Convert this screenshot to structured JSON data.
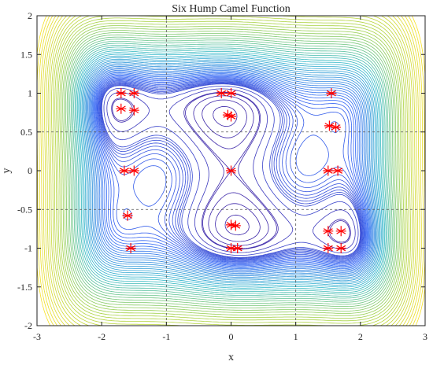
{
  "chart_data": {
    "type": "contour",
    "title": "Six Hump Camel Function",
    "xlabel": "x",
    "ylabel": "y",
    "xlim": [
      -3,
      3
    ],
    "ylim": [
      -2,
      2
    ],
    "xticks": [
      -3,
      -2,
      -1,
      0,
      1,
      2,
      3
    ],
    "yticks": [
      -2,
      -1.5,
      -1,
      -0.5,
      0,
      0.5,
      1,
      1.5,
      2
    ],
    "xtick_labels": [
      "-3",
      "-2",
      "-1",
      "0",
      "1",
      "2",
      "3"
    ],
    "ytick_labels": [
      "-2",
      "-1.5",
      "-1",
      "-0.5",
      "0",
      "0.5",
      "1",
      "1.5",
      "2"
    ],
    "grid_x": [
      -1,
      1
    ],
    "grid_y": [
      -0.5,
      0.5
    ],
    "colormap": [
      "#3d26a8",
      "#2f63f5",
      "#2eb7c8",
      "#a5d242",
      "#f9e021"
    ],
    "marker_color": "#ff0000",
    "marker_symbol": "asterisk",
    "points": [
      {
        "x": -1.7,
        "y": 1.0
      },
      {
        "x": -1.5,
        "y": 1.0
      },
      {
        "x": -1.7,
        "y": 0.8
      },
      {
        "x": -1.5,
        "y": 0.78
      },
      {
        "x": -1.65,
        "y": 0.0
      },
      {
        "x": -1.5,
        "y": 0.0
      },
      {
        "x": -1.6,
        "y": -0.58
      },
      {
        "x": -1.55,
        "y": -1.0
      },
      {
        "x": -0.15,
        "y": 1.0
      },
      {
        "x": 0.0,
        "y": 1.0
      },
      {
        "x": -0.05,
        "y": 0.72
      },
      {
        "x": 0.0,
        "y": 0.7
      },
      {
        "x": 0.0,
        "y": 0.0
      },
      {
        "x": 0.0,
        "y": -0.7
      },
      {
        "x": 0.07,
        "y": -0.71
      },
      {
        "x": 0.0,
        "y": -1.0
      },
      {
        "x": 0.1,
        "y": -1.0
      },
      {
        "x": 1.55,
        "y": 1.0
      },
      {
        "x": 1.52,
        "y": 0.58
      },
      {
        "x": 1.62,
        "y": 0.56
      },
      {
        "x": 1.5,
        "y": 0.0
      },
      {
        "x": 1.65,
        "y": 0.0
      },
      {
        "x": 1.5,
        "y": -0.78
      },
      {
        "x": 1.7,
        "y": -0.78
      },
      {
        "x": 1.5,
        "y": -1.0
      },
      {
        "x": 1.7,
        "y": -1.0
      }
    ]
  }
}
